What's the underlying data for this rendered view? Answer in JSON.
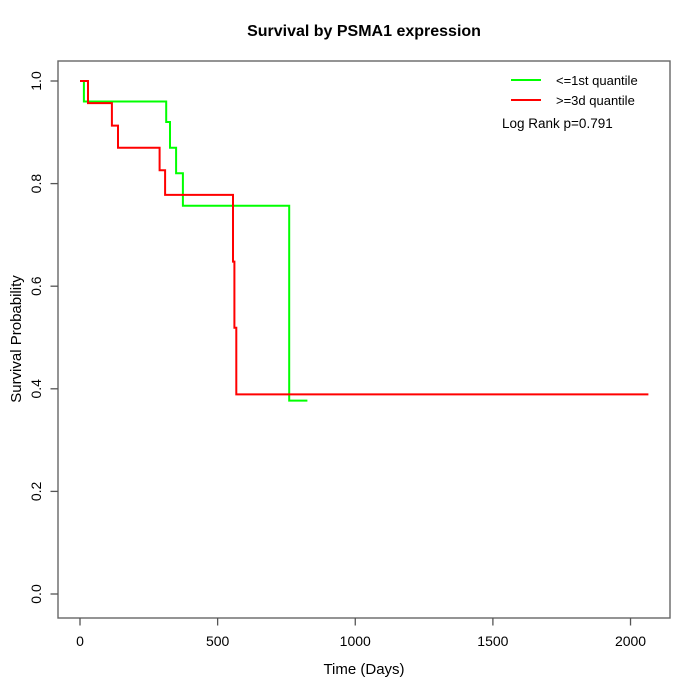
{
  "figure": {
    "title": "Survival by PSMA1 expression"
  },
  "chart_data": {
    "type": "line",
    "subtype": "kaplan-meier-step",
    "title": "Survival by PSMA1 expression",
    "xlabel": "Time (Days)",
    "ylabel": "Survival Probability",
    "xlim": [
      -76,
      2142
    ],
    "ylim": [
      -0.045,
      1.04
    ],
    "x_ticks": [
      0,
      500,
      1000,
      1500,
      2000
    ],
    "y_ticks": [
      0.0,
      0.2,
      0.4,
      0.6,
      0.8,
      1.0
    ],
    "grid": false,
    "legend_position": "top-right",
    "annotation": "Log Rank p=0.791",
    "series": [
      {
        "name": "<=1st quantile",
        "color": "#00ff00",
        "points": [
          [
            0,
            1.0
          ],
          [
            14,
            1.0
          ],
          [
            14,
            0.96
          ],
          [
            313,
            0.96
          ],
          [
            313,
            0.92
          ],
          [
            327,
            0.92
          ],
          [
            327,
            0.87
          ],
          [
            349,
            0.87
          ],
          [
            349,
            0.82
          ],
          [
            374,
            0.82
          ],
          [
            374,
            0.757
          ],
          [
            760,
            0.757
          ],
          [
            760,
            0.377
          ],
          [
            826,
            0.377
          ]
        ]
      },
      {
        "name": ">=3d quantile",
        "color": "#ff0000",
        "points": [
          [
            0,
            1.0
          ],
          [
            29,
            1.0
          ],
          [
            29,
            0.957
          ],
          [
            116,
            0.957
          ],
          [
            116,
            0.913
          ],
          [
            138,
            0.913
          ],
          [
            138,
            0.87
          ],
          [
            289,
            0.87
          ],
          [
            289,
            0.826
          ],
          [
            309,
            0.826
          ],
          [
            309,
            0.778
          ],
          [
            556,
            0.778
          ],
          [
            556,
            0.648
          ],
          [
            561,
            0.648
          ],
          [
            561,
            0.519
          ],
          [
            568,
            0.519
          ],
          [
            568,
            0.389
          ],
          [
            2065,
            0.389
          ]
        ]
      }
    ]
  }
}
